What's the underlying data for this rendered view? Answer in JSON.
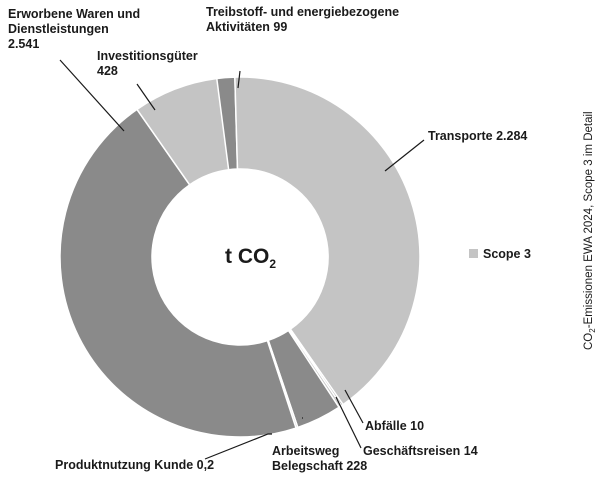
{
  "chart_data": {
    "type": "pie",
    "donut": true,
    "center_label": {
      "main": "t CO",
      "sub": "2"
    },
    "legend": {
      "label": "Scope 3",
      "color": "#c4c4c4",
      "placement": "right"
    },
    "side_title": {
      "pre": "CO",
      "sub": "2",
      "post": "-Emissionen EWA 2024, Scope 3 im Detail"
    },
    "slices": [
      {
        "name": "Treibstoff- und energiebezogene Aktivitäten",
        "value": 99,
        "label_lines": [
          "Treibstoff- und energiebezogene",
          "Aktivitäten  99"
        ],
        "color": "#8a8a8a"
      },
      {
        "name": "Transporte",
        "value": 2284,
        "label_lines": [
          "Transporte  2.284"
        ],
        "color": "#c4c4c4"
      },
      {
        "name": "Abfälle",
        "value": 10,
        "label_lines": [
          "Abfälle  10"
        ],
        "color": "#8a8a8a"
      },
      {
        "name": "Geschäftsreisen",
        "value": 14,
        "label_lines": [
          "Geschäftsreisen 14"
        ],
        "color": "#c4c4c4"
      },
      {
        "name": "Arbeitsweg Belegschaft",
        "value": 228,
        "label_lines": [
          "Arbeitsweg",
          "Belegschaft  228"
        ],
        "color": "#8a8a8a"
      },
      {
        "name": "Produktnutzung Kunde",
        "value": 0.2,
        "label_lines": [
          "Produktnutzung Kunde  0,2"
        ],
        "color": "#c4c4c4"
      },
      {
        "name": "Erworbene Waren und Dienstleistungen",
        "value": 2541,
        "label_lines": [
          "Erworbene Waren und",
          "Dienstleistungen",
          "2.541"
        ],
        "color": "#8a8a8a"
      },
      {
        "name": "Investitionsgüter",
        "value": 428,
        "label_lines": [
          "Investitionsgüter",
          "428"
        ],
        "color": "#c4c4c4"
      }
    ]
  }
}
